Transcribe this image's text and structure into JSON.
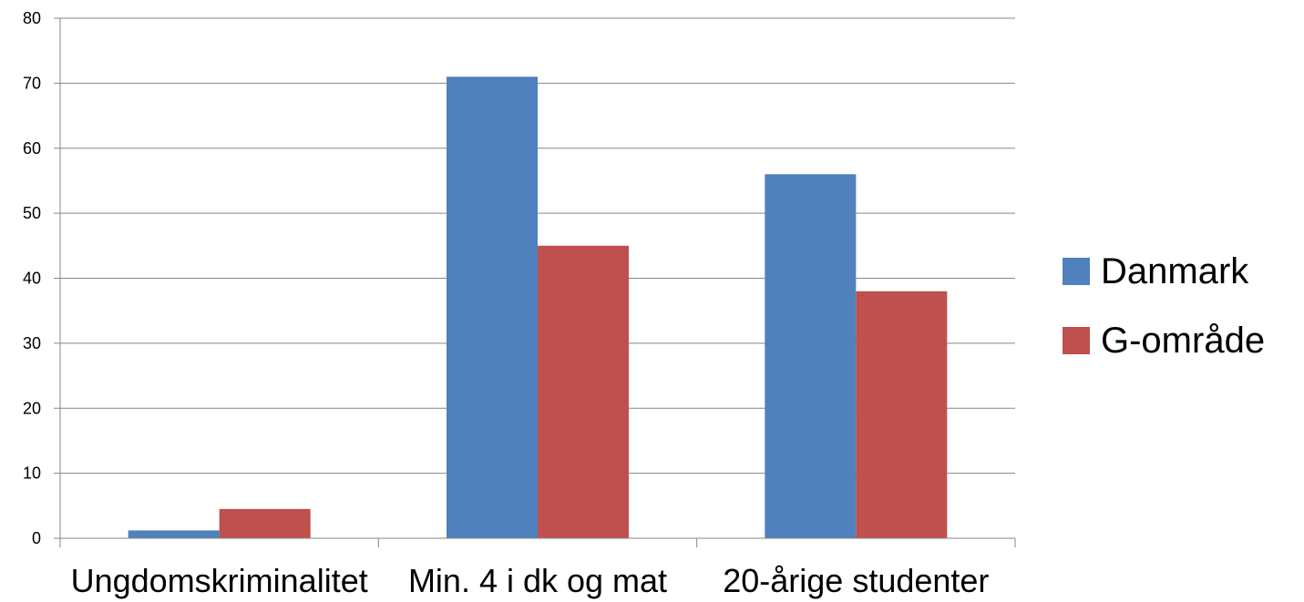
{
  "chart_data": {
    "type": "bar",
    "title": "",
    "xlabel": "",
    "ylabel": "",
    "categories": [
      "Ungdomskriminalitet",
      "Min. 4 i dk og mat",
      "20-årige studenter"
    ],
    "series": [
      {
        "name": "Danmark",
        "color": "#4F81BD",
        "values": [
          1.2,
          71,
          56
        ]
      },
      {
        "name": "G-område",
        "color": "#C0504D",
        "values": [
          4.5,
          45,
          38
        ]
      }
    ],
    "ylim": [
      0,
      80
    ],
    "yticks": [
      "0",
      "10",
      "20",
      "30",
      "40",
      "50",
      "60",
      "70",
      "80"
    ],
    "grid": true,
    "legend_position": "right"
  }
}
